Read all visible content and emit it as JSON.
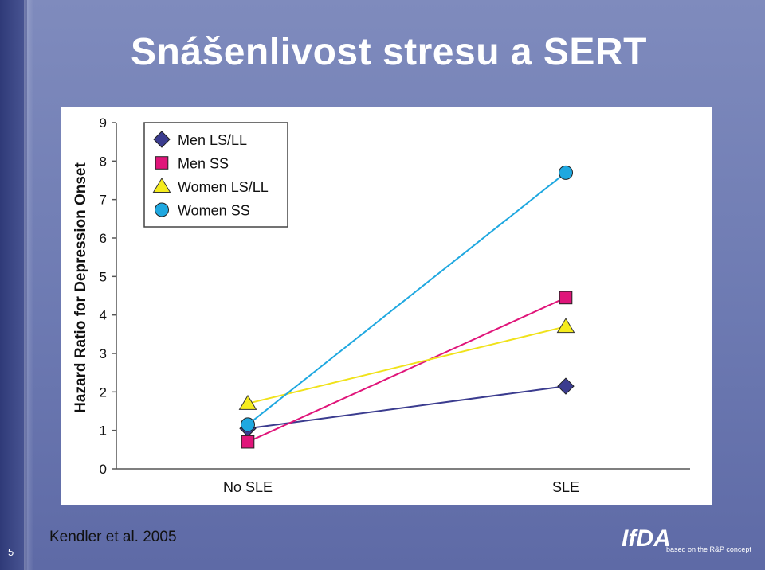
{
  "slide": {
    "title": "Snášenlivost stresu a SERT",
    "citation": "Kendler et al. 2005",
    "slide_number": "5",
    "logo": {
      "mark": "IfDA",
      "tagline": "based on the R&P concept"
    }
  },
  "colors": {
    "background": "#6f7cb3",
    "men_ls_ll": "#3b3c8f",
    "men_ss": "#e0157a",
    "women_ls_ll": "#f5ec1e",
    "women_ss": "#1fa8e0"
  },
  "chart_data": {
    "type": "line",
    "title": "",
    "xlabel": "",
    "ylabel": "Hazard Ratio for Depression Onset",
    "categories": [
      "No SLE",
      "SLE"
    ],
    "ylim": [
      0,
      9
    ],
    "yticks": [
      0,
      1,
      2,
      3,
      4,
      5,
      6,
      7,
      8,
      9
    ],
    "grid": false,
    "legend_position": "top-left",
    "series": [
      {
        "name": "Men LS/LL",
        "values": [
          1.05,
          2.15
        ],
        "marker": "diamond",
        "color": "#3b3c8f"
      },
      {
        "name": "Men SS",
        "values": [
          0.7,
          4.45
        ],
        "marker": "square",
        "color": "#e0157a"
      },
      {
        "name": "Women LS/LL",
        "values": [
          1.7,
          3.7
        ],
        "marker": "triangle",
        "color": "#f5ec1e"
      },
      {
        "name": "Women SS",
        "values": [
          1.15,
          7.7
        ],
        "marker": "circle",
        "color": "#1fa8e0"
      }
    ]
  }
}
